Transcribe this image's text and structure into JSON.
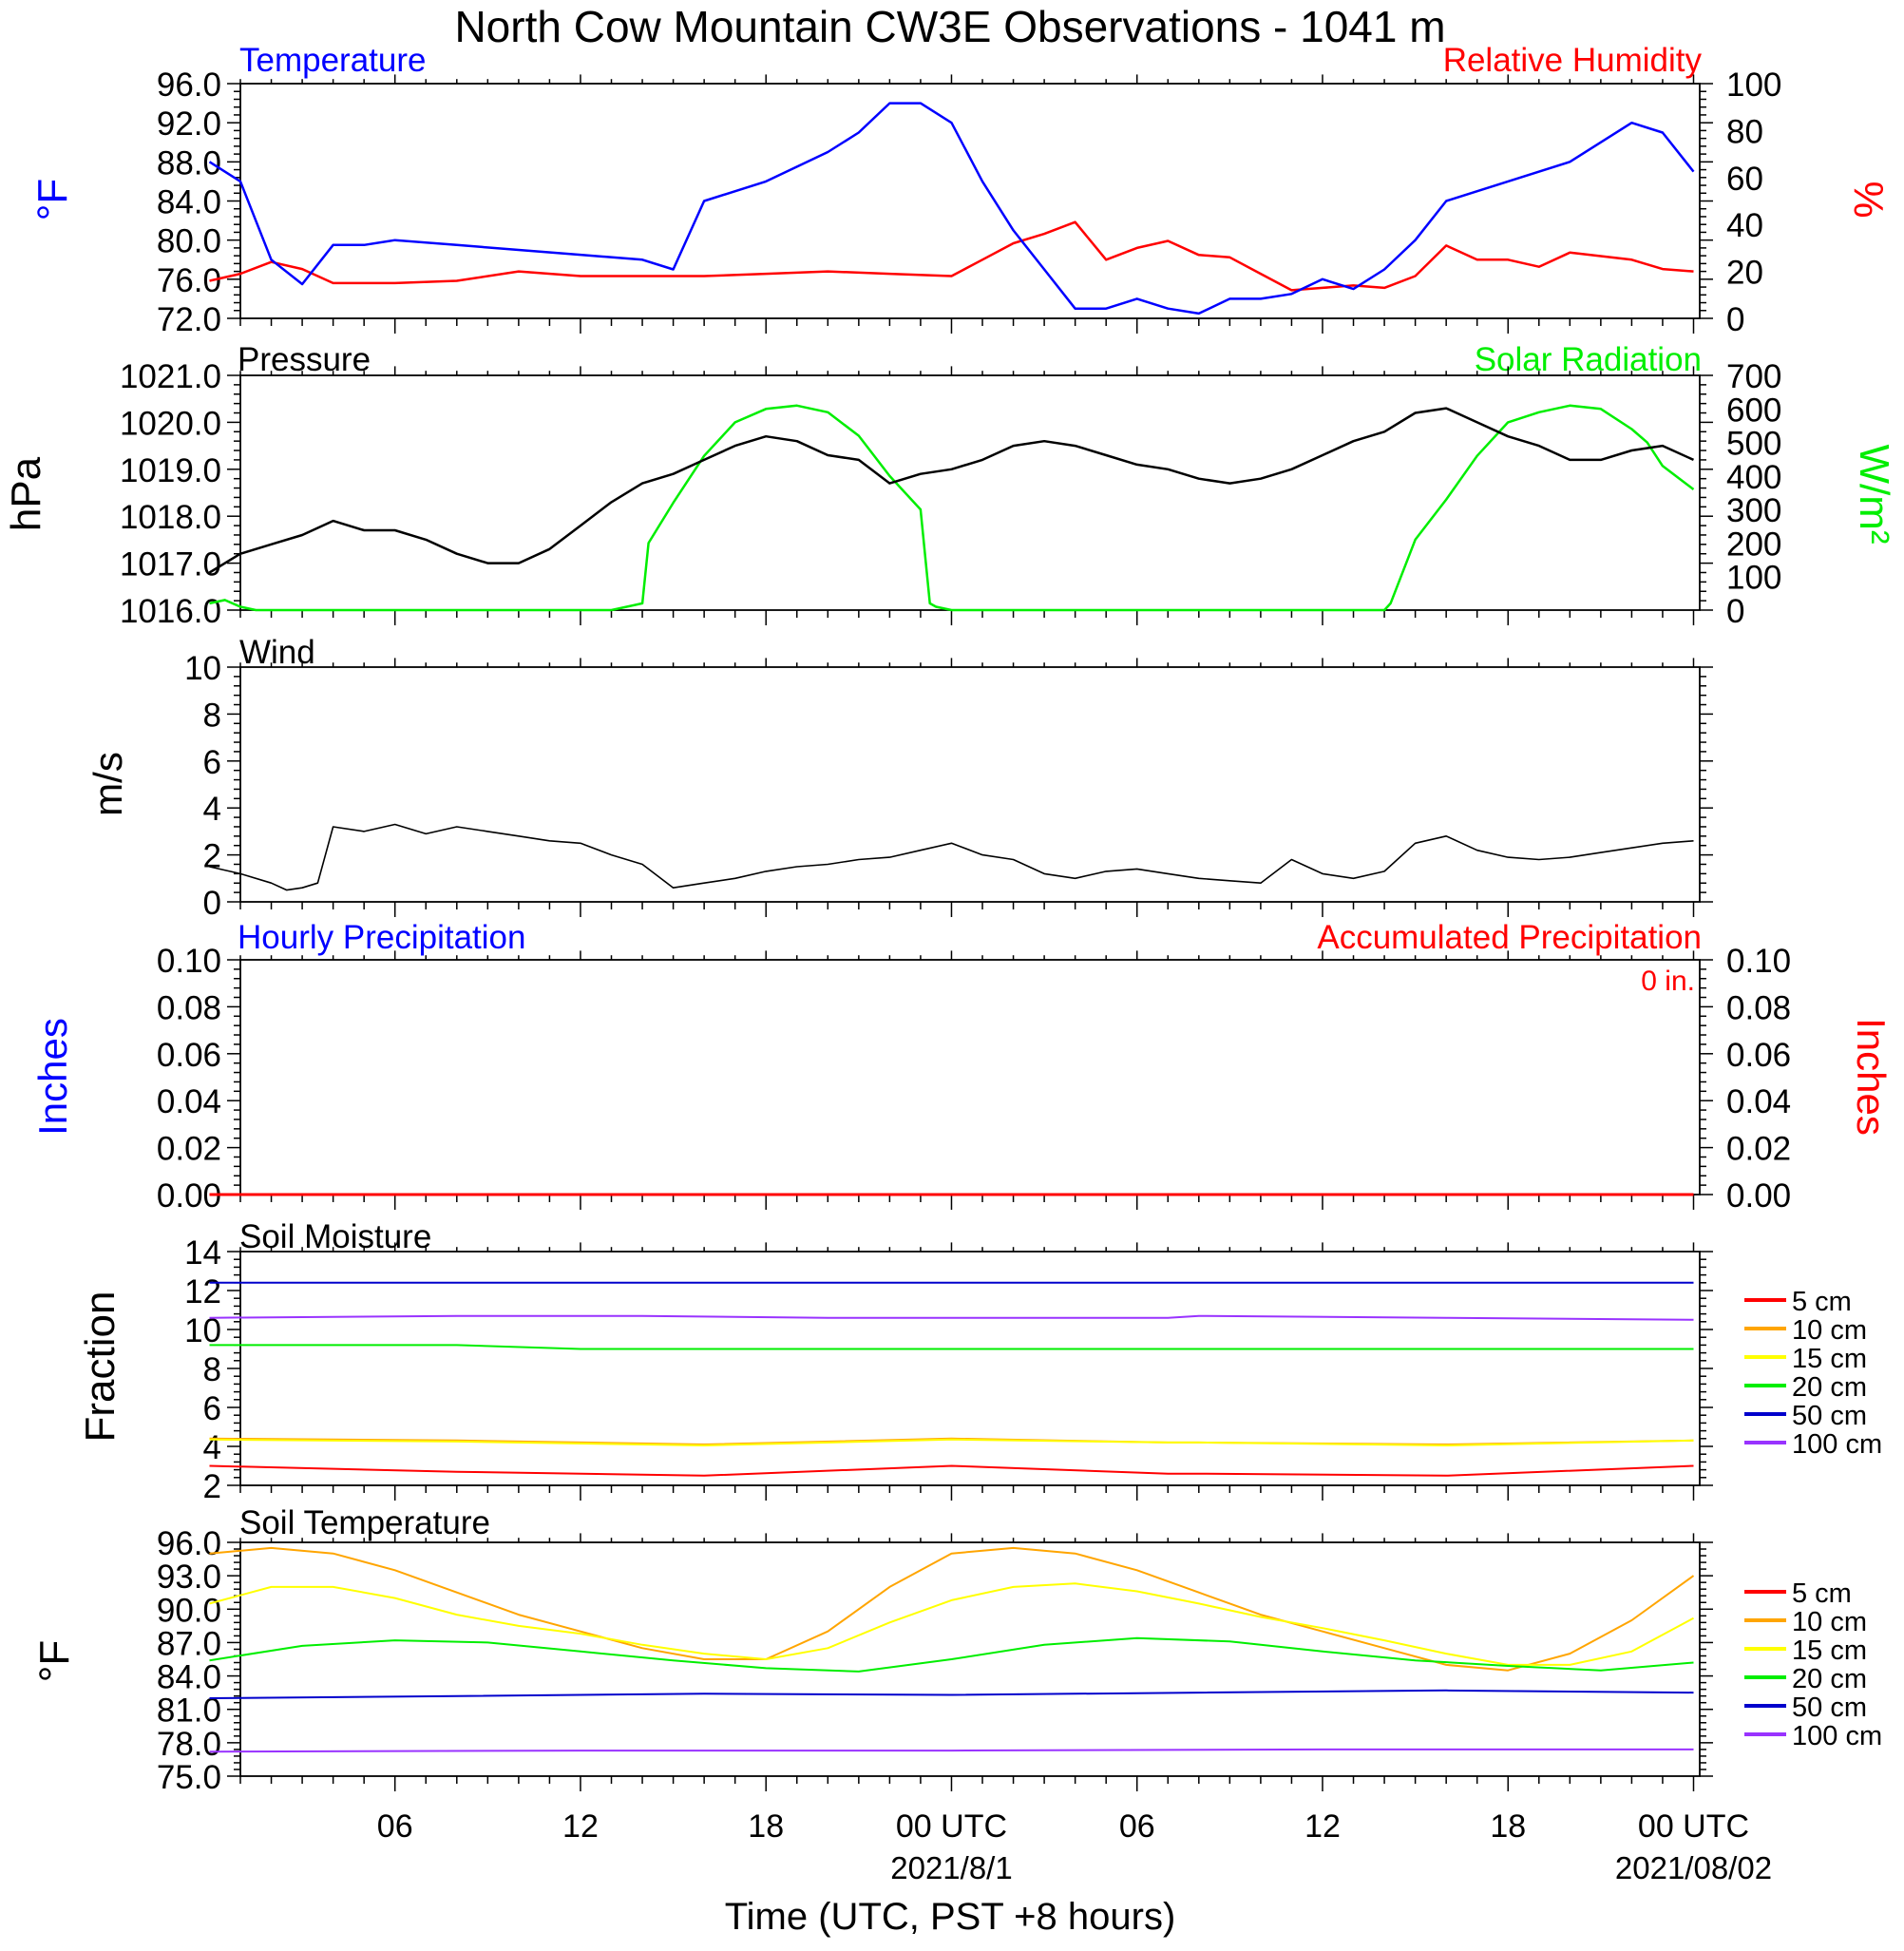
{
  "figure": {
    "title": "North Cow Mountain CW3E Observations - 1041 m",
    "xlabel": "Time (UTC, PST +8 hours)",
    "x_ticks": [
      {
        "label": "06",
        "hour": 6
      },
      {
        "label": "12",
        "hour": 12
      },
      {
        "label": "18",
        "hour": 18
      },
      {
        "label": "00 UTC",
        "hour": 24
      },
      {
        "label": "06",
        "hour": 30
      },
      {
        "label": "12",
        "hour": 36
      },
      {
        "label": "18",
        "hour": 42
      },
      {
        "label": "00 UTC",
        "hour": 48
      }
    ],
    "x_dates": [
      {
        "label": "2021/8/1",
        "hour": 24
      },
      {
        "label": "2021/08/02",
        "hour": 48
      }
    ]
  },
  "panels": {
    "temp_rh": {
      "left_title": "Temperature",
      "right_title": "Relative Humidity",
      "left_unit": "°F",
      "right_unit": "%",
      "left_ticks": [
        "96.0",
        "92.0",
        "88.0",
        "84.0",
        "80.0",
        "76.0",
        "72.0"
      ],
      "right_ticks": [
        "100",
        "80",
        "60",
        "40",
        "20",
        "0"
      ]
    },
    "pressure": {
      "left_title": "Pressure",
      "right_title": "Solar Radiation",
      "left_unit": "hPa",
      "right_unit": "W/m²",
      "left_ticks": [
        "1021.0",
        "1020.0",
        "1019.0",
        "1018.0",
        "1017.0",
        "1016.0"
      ],
      "right_ticks": [
        "700",
        "600",
        "500",
        "400",
        "300",
        "200",
        "100",
        "0"
      ]
    },
    "wind": {
      "left_title": "Wind",
      "left_unit": "m/s",
      "left_ticks": [
        "10",
        "8",
        "6",
        "4",
        "2",
        "0"
      ]
    },
    "precip": {
      "left_title": "Hourly Precipitation",
      "right_title": "Accumulated Precipitation",
      "total_label": "0 in.",
      "left_unit": "Inches",
      "right_unit": "Inches",
      "left_ticks": [
        "0.10",
        "0.08",
        "0.06",
        "0.04",
        "0.02",
        "0.00"
      ],
      "right_ticks": [
        "0.10",
        "0.08",
        "0.06",
        "0.04",
        "0.02",
        "0.00"
      ]
    },
    "soil_moist": {
      "left_title": "Soil Moisture",
      "left_unit": "Fraction",
      "left_ticks": [
        "14",
        "12",
        "10",
        "8",
        "6",
        "4",
        "2"
      ],
      "legend": [
        "5 cm",
        "10 cm",
        "15 cm",
        "20 cm",
        "50 cm",
        "100 cm"
      ]
    },
    "soil_temp": {
      "left_title": "Soil Temperature",
      "left_unit": "°F",
      "left_ticks": [
        "96.0",
        "93.0",
        "90.0",
        "87.0",
        "84.0",
        "81.0",
        "78.0",
        "75.0"
      ],
      "legend": [
        "5 cm",
        "10 cm",
        "15 cm",
        "20 cm",
        "50 cm",
        "100 cm"
      ]
    }
  },
  "colors": {
    "temperature": "#0000ff",
    "rh": "#ff0000",
    "pressure": "#000000",
    "solar": "#00ee00",
    "wind": "#000000",
    "barb": "#ff0000",
    "accum": "#ff0000",
    "depth_5": "#ff0000",
    "depth_10": "#ffa500",
    "depth_15": "#ffff00",
    "depth_20": "#00ee00",
    "depth_50": "#0000cc",
    "depth_100": "#9933ff"
  },
  "chart_data": [
    {
      "type": "line",
      "panel": "Temperature / Relative Humidity",
      "x_unit": "hours since 2021-07-31 00 UTC",
      "xlim": [
        0,
        48
      ],
      "ylim_left": [
        72,
        96
      ],
      "ylim_right": [
        0,
        100
      ],
      "series": [
        {
          "name": "Temperature",
          "axis": "left",
          "x": [
            0,
            1,
            2,
            3,
            4,
            5,
            6,
            8,
            10,
            12,
            14,
            15,
            16,
            18,
            20,
            21,
            22,
            23,
            24,
            25,
            26,
            27,
            28,
            29,
            30,
            31,
            32,
            33,
            34,
            35,
            36,
            37,
            38,
            39,
            40,
            42,
            44,
            46,
            47,
            48
          ],
          "y": [
            88,
            86,
            78,
            75.5,
            79.5,
            79.5,
            80,
            79.5,
            79,
            78.5,
            78,
            77,
            84,
            86,
            89,
            91,
            94,
            94,
            92,
            86,
            81,
            77,
            73,
            73,
            74,
            73,
            72.5,
            74,
            74,
            74.5,
            76,
            75,
            77,
            80,
            84,
            86,
            88,
            92,
            91,
            87
          ]
        },
        {
          "name": "Relative Humidity",
          "axis": "right",
          "x": [
            0,
            1,
            2,
            3,
            4,
            6,
            8,
            10,
            12,
            14,
            16,
            18,
            20,
            22,
            24,
            25,
            26,
            27,
            28,
            29,
            30,
            31,
            32,
            33,
            34,
            35,
            36,
            37,
            38,
            39,
            40,
            41,
            42,
            43,
            44,
            46,
            47,
            48
          ],
          "y": [
            16,
            19,
            24,
            21,
            15,
            15,
            16,
            20,
            18,
            18,
            18,
            19,
            20,
            19,
            18,
            25,
            32,
            36,
            41,
            25,
            30,
            33,
            27,
            26,
            19,
            12,
            13,
            14,
            13,
            18,
            31,
            25,
            25,
            22,
            28,
            25,
            21,
            20
          ]
        }
      ]
    },
    {
      "type": "line",
      "panel": "Pressure / Solar Radiation",
      "x_unit": "hours since 2021-07-31 00 UTC",
      "xlim": [
        0,
        48
      ],
      "ylim_left": [
        1016,
        1021
      ],
      "ylim_right": [
        0,
        700
      ],
      "series": [
        {
          "name": "Pressure",
          "axis": "left",
          "x": [
            0,
            1,
            2,
            3,
            4,
            5,
            6,
            7,
            8,
            9,
            10,
            11,
            12,
            13,
            14,
            15,
            16,
            17,
            18,
            19,
            20,
            21,
            22,
            23,
            24,
            25,
            26,
            27,
            28,
            29,
            30,
            31,
            32,
            33,
            34,
            35,
            36,
            37,
            38,
            39,
            40,
            41,
            42,
            43,
            44,
            45,
            46,
            47,
            48
          ],
          "y": [
            1016.8,
            1017.2,
            1017.4,
            1017.6,
            1017.9,
            1017.7,
            1017.7,
            1017.5,
            1017.2,
            1017.0,
            1017.0,
            1017.3,
            1017.8,
            1018.3,
            1018.7,
            1018.9,
            1019.2,
            1019.5,
            1019.7,
            1019.6,
            1019.3,
            1019.2,
            1018.7,
            1018.9,
            1019.0,
            1019.2,
            1019.5,
            1019.6,
            1019.5,
            1019.3,
            1019.1,
            1019.0,
            1018.8,
            1018.7,
            1018.8,
            1019.0,
            1019.3,
            1019.6,
            1019.8,
            1020.2,
            1020.3,
            1020.0,
            1019.7,
            1019.5,
            1019.2,
            1019.2,
            1019.4,
            1019.5,
            1019.2
          ]
        },
        {
          "name": "Solar Radiation",
          "axis": "right",
          "x": [
            0,
            0.5,
            1,
            1.5,
            2,
            13,
            14,
            14.2,
            15,
            16,
            17,
            18,
            19,
            20,
            21,
            22,
            23,
            23.3,
            23.5,
            24,
            25,
            26,
            27,
            38,
            38.2,
            39,
            40,
            41,
            42,
            43,
            44,
            45,
            46,
            46.5,
            47,
            48
          ],
          "y": [
            20,
            30,
            10,
            0,
            0,
            0,
            20,
            200,
            320,
            460,
            560,
            600,
            610,
            590,
            520,
            400,
            300,
            20,
            10,
            0,
            0,
            0,
            0,
            0,
            20,
            210,
            330,
            460,
            560,
            590,
            610,
            600,
            540,
            500,
            430,
            360
          ]
        }
      ]
    },
    {
      "type": "line",
      "panel": "Wind",
      "y_unit": "m/s",
      "x_unit": "hours since 2021-07-31 00 UTC",
      "xlim": [
        0,
        48
      ],
      "ylim": [
        0,
        10
      ],
      "series": [
        {
          "name": "Wind",
          "x": [
            0,
            1,
            2,
            2.5,
            3,
            3.5,
            4,
            5,
            6,
            7,
            8,
            9,
            10,
            11,
            12,
            13,
            14,
            15,
            16,
            17,
            18,
            19,
            20,
            21,
            22,
            23,
            24,
            25,
            26,
            27,
            28,
            29,
            30,
            31,
            32,
            33,
            34,
            35,
            36,
            37,
            38,
            39,
            40,
            41,
            42,
            43,
            44,
            45,
            46,
            47,
            48
          ],
          "y": [
            1.5,
            1.2,
            0.8,
            0.5,
            0.6,
            0.8,
            3.2,
            3.0,
            3.3,
            2.9,
            3.2,
            3.0,
            2.8,
            2.6,
            2.5,
            2.0,
            1.6,
            0.6,
            0.8,
            1.0,
            1.3,
            1.5,
            1.6,
            1.8,
            1.9,
            2.2,
            2.5,
            2.0,
            1.8,
            1.2,
            1.0,
            1.3,
            1.4,
            1.2,
            1.0,
            0.9,
            0.8,
            1.8,
            1.2,
            1.0,
            1.3,
            2.5,
            2.8,
            2.2,
            1.9,
            1.8,
            1.9,
            2.1,
            2.3,
            2.5,
            2.6
          ]
        }
      ]
    },
    {
      "type": "line",
      "panel": "Hourly / Accumulated Precipitation",
      "x_unit": "hours since 2021-07-31 00 UTC",
      "xlim": [
        0,
        48
      ],
      "ylim_left": [
        0,
        0.1
      ],
      "ylim_right": [
        0,
        0.1
      ],
      "series": [
        {
          "name": "Accumulated Precipitation",
          "axis": "right",
          "x": [
            0,
            48
          ],
          "y": [
            0,
            0
          ]
        }
      ]
    },
    {
      "type": "line",
      "panel": "Soil Moisture",
      "xlim": [
        0,
        48
      ],
      "ylim": [
        2,
        14
      ],
      "x_unit": "hours since 2021-07-31 00 UTC",
      "gap_hours": [
        31.2,
        32.2
      ],
      "series": [
        {
          "name": "5 cm",
          "x": [
            0,
            8,
            16,
            24,
            31,
            32,
            40,
            48
          ],
          "y": [
            3.0,
            2.7,
            2.5,
            3.0,
            2.6,
            2.6,
            2.5,
            3.0
          ]
        },
        {
          "name": "10 cm",
          "x": [
            0,
            8,
            16,
            24,
            31,
            32,
            40,
            48
          ],
          "y": [
            4.4,
            4.3,
            4.1,
            4.4,
            4.2,
            4.2,
            4.1,
            4.3
          ]
        },
        {
          "name": "15 cm",
          "x": [
            0,
            8,
            16,
            24,
            31,
            32,
            40,
            48
          ],
          "y": [
            4.35,
            4.25,
            4.05,
            4.35,
            4.2,
            4.2,
            4.05,
            4.3
          ]
        },
        {
          "name": "20 cm",
          "x": [
            0,
            8,
            12,
            16,
            24,
            31,
            32,
            40,
            48
          ],
          "y": [
            9.2,
            9.2,
            9.0,
            9.0,
            9.0,
            9.0,
            9.0,
            9.0,
            9.0
          ]
        },
        {
          "name": "50 cm",
          "x": [
            0,
            31,
            32,
            48
          ],
          "y": [
            12.4,
            12.4,
            12.4,
            12.4
          ]
        },
        {
          "name": "100 cm",
          "x": [
            0,
            8,
            14,
            20,
            31,
            32,
            40,
            48
          ],
          "y": [
            10.6,
            10.7,
            10.7,
            10.6,
            10.6,
            10.7,
            10.6,
            10.5
          ]
        }
      ]
    },
    {
      "type": "line",
      "panel": "Soil Temperature",
      "xlim": [
        0,
        48
      ],
      "ylim": [
        75,
        96
      ],
      "x_unit": "hours since 2021-07-31 00 UTC",
      "series": [
        {
          "name": "10 cm",
          "x": [
            0,
            2,
            4,
            6,
            8,
            10,
            12,
            14,
            16,
            18,
            20,
            22,
            24,
            26,
            28,
            30,
            32,
            34,
            36,
            38,
            40,
            42,
            44,
            46,
            48
          ],
          "y": [
            95,
            95.5,
            95,
            93.5,
            91.5,
            89.5,
            88,
            86.5,
            85.5,
            85.5,
            88,
            92,
            95,
            95.5,
            95,
            93.5,
            91.5,
            89.5,
            88,
            86.5,
            85,
            84.5,
            86,
            89,
            93
          ]
        },
        {
          "name": "15 cm",
          "x": [
            0,
            2,
            4,
            6,
            8,
            10,
            12,
            14,
            16,
            18,
            20,
            22,
            24,
            26,
            28,
            30,
            32,
            34,
            36,
            38,
            40,
            42,
            44,
            46,
            48
          ],
          "y": [
            90.5,
            92,
            92,
            91,
            89.5,
            88.5,
            87.8,
            86.8,
            86,
            85.5,
            86.5,
            88.8,
            90.8,
            92,
            92.3,
            91.6,
            90.5,
            89.3,
            88.3,
            87.2,
            86,
            85,
            85,
            86.2,
            89.2
          ]
        },
        {
          "name": "20 cm",
          "x": [
            0,
            3,
            6,
            9,
            12,
            15,
            18,
            21,
            24,
            27,
            30,
            33,
            36,
            39,
            42,
            45,
            48
          ],
          "y": [
            85.4,
            86.7,
            87.2,
            87,
            86.2,
            85.4,
            84.7,
            84.4,
            85.5,
            86.8,
            87.4,
            87.1,
            86.2,
            85.4,
            84.9,
            84.5,
            85.2
          ]
        },
        {
          "name": "50 cm",
          "x": [
            0,
            8,
            16,
            24,
            32,
            40,
            48
          ],
          "y": [
            82.0,
            82.2,
            82.4,
            82.3,
            82.5,
            82.7,
            82.5
          ]
        },
        {
          "name": "100 cm",
          "x": [
            0,
            12,
            24,
            36,
            48
          ],
          "y": [
            77.2,
            77.3,
            77.3,
            77.4,
            77.4
          ]
        }
      ]
    }
  ]
}
